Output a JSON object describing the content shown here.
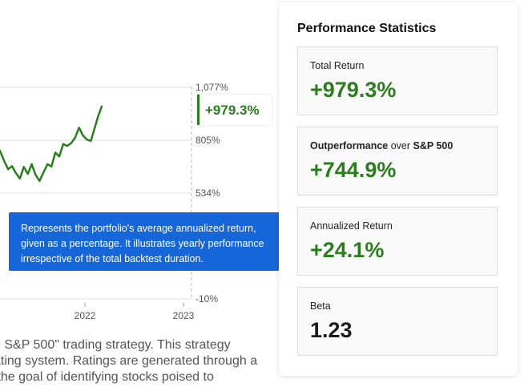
{
  "chart_data": {
    "type": "line",
    "title": "",
    "xlabel": "",
    "ylabel": "",
    "x_ticks": [
      "2022",
      "2023"
    ],
    "y_ticks": [
      "1,077%",
      "805%",
      "534%",
      "-10%"
    ],
    "y_tick_values": [
      1077,
      805,
      534,
      -10
    ],
    "ylim": [
      -10,
      1077
    ],
    "grid": true,
    "series": [
      {
        "color": "#2b7d1e",
        "points": [
          [
            2020.52,
            420
          ],
          [
            2020.56,
            462
          ],
          [
            2020.6,
            500
          ],
          [
            2020.63,
            512
          ],
          [
            2020.67,
            520
          ],
          [
            2020.71,
            552
          ],
          [
            2020.75,
            590
          ],
          [
            2020.79,
            632
          ],
          [
            2020.83,
            612
          ],
          [
            2020.87,
            652
          ],
          [
            2020.91,
            672
          ],
          [
            2020.95,
            648
          ],
          [
            2020.99,
            702
          ],
          [
            2021.03,
            722
          ],
          [
            2021.07,
            765
          ],
          [
            2021.1,
            782
          ],
          [
            2021.14,
            748
          ],
          [
            2021.18,
            700
          ],
          [
            2021.22,
            656
          ],
          [
            2021.26,
            672
          ],
          [
            2021.3,
            636
          ],
          [
            2021.34,
            608
          ],
          [
            2021.38,
            668
          ],
          [
            2021.42,
            632
          ],
          [
            2021.46,
            682
          ],
          [
            2021.5,
            626
          ],
          [
            2021.54,
            596
          ],
          [
            2021.58,
            640
          ],
          [
            2021.62,
            682
          ],
          [
            2021.66,
            670
          ],
          [
            2021.7,
            742
          ],
          [
            2021.74,
            722
          ],
          [
            2021.78,
            786
          ],
          [
            2021.82,
            776
          ],
          [
            2021.86,
            790
          ],
          [
            2021.9,
            818
          ],
          [
            2021.94,
            870
          ],
          [
            2021.98,
            830
          ],
          [
            2022.02,
            808
          ],
          [
            2022.06,
            802
          ],
          [
            2022.1,
            870
          ],
          [
            2022.13,
            922
          ],
          [
            2022.17,
            979
          ]
        ]
      },
      {
        "color": "#b5b5b5",
        "points": [
          [
            2020.6,
            300
          ],
          [
            2020.63,
            318
          ],
          [
            2020.66,
            336
          ],
          [
            2020.69,
            342
          ]
        ]
      }
    ],
    "annotation": "+979.3%"
  },
  "tooltip": {
    "lines": [
      "Represents the portfolio's average annualized return,",
      "given as a percentage. It illustrates yearly performance",
      "irrespective of the total backtest duration."
    ]
  },
  "description": {
    "lines": [
      "e S&P 500\" trading strategy. This strategy",
      "ating system. Ratings are generated through a",
      " the goal of identifying stocks poised to"
    ]
  },
  "stats": {
    "title": "Performance Statistics",
    "cards": [
      {
        "label": "Total Return",
        "value": "+979.3%",
        "color": "#2b7d1e"
      },
      {
        "label_strong": "Outperformance",
        "label_mid": " over ",
        "label_strong2": "S&P 500",
        "value": "+744.9%",
        "color": "#2b7d1e"
      },
      {
        "label": "Annualized Return",
        "value": "+24.1%",
        "color": "#2b7d1e"
      },
      {
        "label": "Beta",
        "value": "1.23",
        "color": "#1b1b1b"
      }
    ]
  }
}
